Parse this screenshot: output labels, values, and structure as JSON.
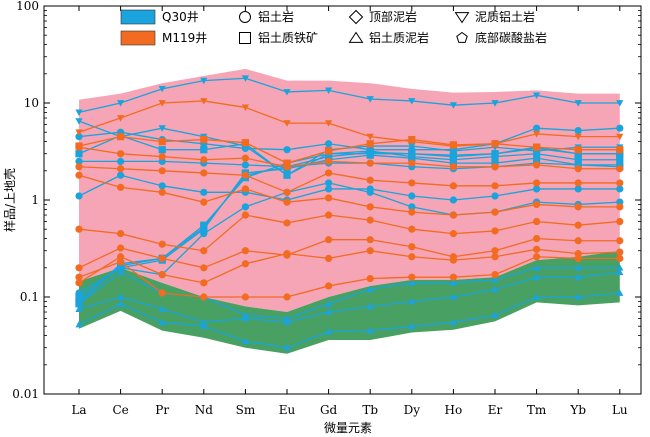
{
  "chart_data": {
    "type": "line",
    "title": "",
    "xlabel": "微量元素",
    "ylabel": "样品/上地壳",
    "y_scale": "log",
    "ylim": [
      0.01,
      100
    ],
    "y_ticks": [
      "0.01",
      "0.1",
      "1",
      "10",
      "100"
    ],
    "categories": [
      "La",
      "Ce",
      "Pr",
      "Nd",
      "Sm",
      "Eu",
      "Gd",
      "Tb",
      "Dy",
      "Ho",
      "Er",
      "Tm",
      "Yb",
      "Lu"
    ],
    "colors": {
      "q30": "#1aa3dc",
      "m119": "#f26b21",
      "band_pink": "#f4a0b1",
      "band_green": "#3e9c5a"
    },
    "legend": [
      {
        "kind": "swatch",
        "color": "#1aa3dc",
        "label": "Q30井"
      },
      {
        "kind": "swatch",
        "color": "#f26b21",
        "label": "M119井"
      },
      {
        "kind": "circle",
        "label": "铝土岩"
      },
      {
        "kind": "square",
        "label": "铝土质铁矿"
      },
      {
        "kind": "diamond",
        "label": "顶部泥岩"
      },
      {
        "kind": "triangle-up",
        "label": "铝土质泥岩"
      },
      {
        "kind": "triangle-down",
        "label": "泥质铝土岩"
      },
      {
        "kind": "pentagon",
        "label": "底部碳酸盐岩"
      }
    ],
    "bands": {
      "pink_upper": [
        10.8,
        12.5,
        16,
        19,
        22.5,
        17,
        17,
        16,
        14,
        12.8,
        13,
        13.5,
        12.5,
        12.5
      ],
      "pink_lower": [
        0.145,
        0.2,
        0.14,
        0.1,
        0.08,
        0.07,
        0.1,
        0.13,
        0.15,
        0.15,
        0.16,
        0.24,
        0.26,
        0.3
      ],
      "green_lower": [
        0.047,
        0.072,
        0.045,
        0.038,
        0.03,
        0.026,
        0.036,
        0.036,
        0.043,
        0.046,
        0.056,
        0.088,
        0.082,
        0.088
      ]
    },
    "series": [
      {
        "group": "q30",
        "marker": "triangle-down",
        "values": [
          8,
          10,
          14,
          17,
          18,
          13,
          13.5,
          11,
          10.5,
          9.5,
          10,
          12,
          10,
          10
        ]
      },
      {
        "group": "q30",
        "marker": "triangle-down",
        "values": [
          6.5,
          4.5,
          5.5,
          4.5,
          3.6,
          1.8,
          3.3,
          3.6,
          3.6,
          3.2,
          3.5,
          3.2,
          3.5,
          3.5
        ]
      },
      {
        "group": "q30",
        "marker": "square",
        "values": [
          3,
          4.6,
          3.3,
          3.3,
          3.8,
          1.8,
          3,
          3,
          3,
          2.8,
          3,
          3.5,
          3,
          3
        ]
      },
      {
        "group": "q30",
        "marker": "circle",
        "values": [
          4.5,
          5,
          4.2,
          3.8,
          3.4,
          3.3,
          3.8,
          3.3,
          3.3,
          3.3,
          3.8,
          5.5,
          5.2,
          5.5
        ]
      },
      {
        "group": "q30",
        "marker": "circle",
        "values": [
          2.5,
          2.5,
          2.5,
          2.4,
          2.3,
          2.2,
          2.4,
          2.4,
          2.2,
          2.1,
          2.2,
          2.4,
          2.3,
          2.3
        ]
      },
      {
        "group": "q30",
        "marker": "circle",
        "values": [
          1.1,
          1.8,
          1.4,
          1.2,
          1.2,
          1.0,
          1.3,
          1.3,
          1.1,
          1.0,
          1.1,
          1.3,
          1.3,
          1.3
        ]
      },
      {
        "group": "q30",
        "marker": "circle",
        "values": [
          0.11,
          0.2,
          0.17,
          0.45,
          0.85,
          1.2,
          1.5,
          1.2,
          0.85,
          0.7,
          0.75,
          0.95,
          0.9,
          0.95
        ]
      },
      {
        "group": "q30",
        "marker": "square",
        "values": [
          0.085,
          0.22,
          0.25,
          0.55,
          1.7,
          2.4,
          3,
          3.2,
          2.8,
          2.6,
          2.8,
          3,
          2.6,
          2.6
        ]
      },
      {
        "group": "q30",
        "marker": "square",
        "values": [
          0.1,
          0.2,
          0.24,
          0.5,
          1.9,
          2.1,
          2.6,
          2.9,
          2.7,
          2.4,
          2.4,
          2.7,
          2.3,
          2.2
        ]
      },
      {
        "group": "q30",
        "marker": "square",
        "values": [
          0.09,
          0.21,
          0.25,
          0.52,
          1.8,
          2.2,
          2.8,
          3.1,
          3.0,
          2.9,
          3.0,
          3.4,
          3.0,
          3.0
        ]
      },
      {
        "group": "q30",
        "marker": "triangle-up",
        "values": [
          0.085,
          0.18,
          0.11,
          0.1,
          0.065,
          0.06,
          0.085,
          0.12,
          0.14,
          0.14,
          0.15,
          0.2,
          0.2,
          0.2
        ]
      },
      {
        "group": "q30",
        "marker": "triangle-up",
        "values": [
          0.075,
          0.1,
          0.075,
          0.055,
          0.06,
          0.055,
          0.07,
          0.08,
          0.09,
          0.1,
          0.12,
          0.16,
          0.16,
          0.18
        ]
      },
      {
        "group": "q30",
        "marker": "triangle-up",
        "values": [
          0.052,
          0.085,
          0.055,
          0.05,
          0.035,
          0.03,
          0.044,
          0.045,
          0.05,
          0.055,
          0.065,
          0.1,
          0.1,
          0.11
        ]
      },
      {
        "group": "m119",
        "marker": "triangle-down",
        "values": [
          5,
          7,
          10,
          10.5,
          9,
          6.2,
          6.2,
          4.5,
          4,
          3.6,
          3.8,
          4.8,
          4.5,
          4.5
        ]
      },
      {
        "group": "m119",
        "marker": "square",
        "values": [
          3.6,
          4.5,
          4,
          4.2,
          3.9,
          2.4,
          3.2,
          3.8,
          4.2,
          3.7,
          3.8,
          3.5,
          3.3,
          3.3
        ]
      },
      {
        "group": "m119",
        "marker": "circle",
        "values": [
          3.5,
          3,
          2.8,
          2.6,
          2.7,
          2.2,
          2.5,
          2.4,
          2.4,
          2.2,
          2.2,
          2.3,
          2.1,
          2.1
        ]
      },
      {
        "group": "m119",
        "marker": "circle",
        "values": [
          2.2,
          2.1,
          2.0,
          1.9,
          1.8,
          1.2,
          1.9,
          1.6,
          1.5,
          1.4,
          1.4,
          1.5,
          1.5,
          1.5
        ]
      },
      {
        "group": "m119",
        "marker": "circle",
        "values": [
          1.8,
          1.35,
          1.2,
          0.95,
          1.3,
          0.95,
          1.05,
          0.85,
          0.75,
          0.7,
          0.75,
          0.9,
          0.85,
          0.85
        ]
      },
      {
        "group": "m119",
        "marker": "circle",
        "values": [
          0.5,
          0.45,
          0.35,
          0.3,
          0.7,
          0.58,
          0.7,
          0.62,
          0.5,
          0.45,
          0.48,
          0.6,
          0.55,
          0.6
        ]
      },
      {
        "group": "m119",
        "marker": "circle",
        "values": [
          0.2,
          0.32,
          0.25,
          0.2,
          0.3,
          0.27,
          0.39,
          0.39,
          0.33,
          0.26,
          0.3,
          0.4,
          0.38,
          0.38
        ]
      },
      {
        "group": "m119",
        "marker": "circle",
        "values": [
          0.14,
          0.26,
          0.17,
          0.14,
          0.22,
          0.28,
          0.25,
          0.3,
          0.26,
          0.24,
          0.26,
          0.31,
          0.28,
          0.29
        ]
      },
      {
        "group": "m119",
        "marker": "circle",
        "values": [
          0.16,
          0.23,
          0.11,
          0.1,
          0.1,
          0.1,
          0.13,
          0.155,
          0.16,
          0.16,
          0.17,
          0.26,
          0.25,
          0.25
        ]
      }
    ]
  }
}
